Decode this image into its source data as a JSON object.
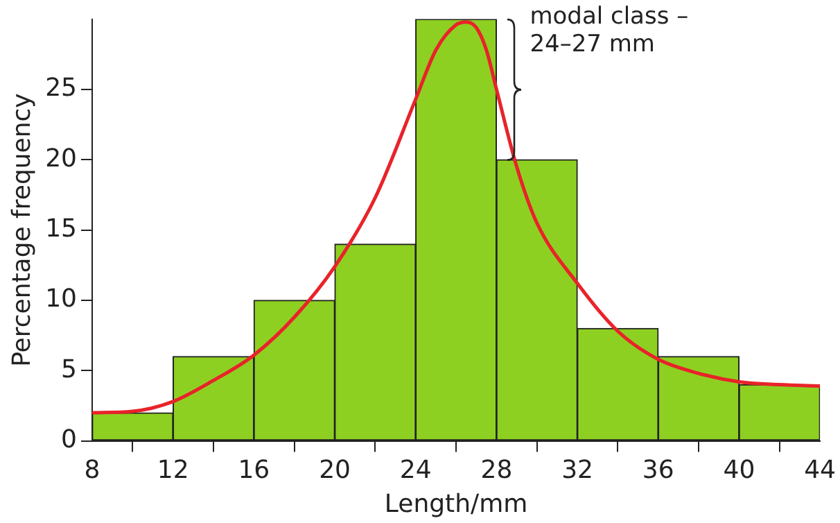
{
  "chart_data": {
    "type": "histogram",
    "xlabel": "Length/mm",
    "ylabel": "Percentage frequency",
    "bins": [
      8,
      12,
      16,
      20,
      24,
      28,
      32,
      36,
      40,
      44
    ],
    "values": [
      2,
      6,
      10,
      14,
      30,
      20,
      8,
      6,
      4
    ],
    "color": "#8ed021",
    "xlim": [
      8,
      44
    ],
    "xticks": [
      8,
      12,
      16,
      20,
      24,
      28,
      32,
      36,
      40,
      44
    ],
    "ylim": [
      0,
      30
    ],
    "yticks": [
      0,
      5,
      10,
      15,
      20,
      25
    ],
    "grid": false,
    "legend": false,
    "series": [
      {
        "type": "line",
        "color": "#e8232a",
        "x": [
          8,
          10,
          12,
          14,
          16,
          18,
          20,
          22,
          24,
          25,
          26,
          26.5,
          27,
          27.5,
          28,
          29,
          30,
          32,
          34,
          36,
          38,
          40,
          42,
          44
        ],
        "values": [
          2,
          2.1,
          2.8,
          4.3,
          6.1,
          8.8,
          12.4,
          17.3,
          24.3,
          27.8,
          29.6,
          29.8,
          29.4,
          27.8,
          25,
          19.5,
          15.5,
          11.2,
          7.8,
          5.8,
          4.8,
          4.2,
          4,
          3.9
        ]
      }
    ],
    "annotations": [
      {
        "text": "modal class – 24–27 mm",
        "x": 28,
        "y": 25
      }
    ]
  }
}
